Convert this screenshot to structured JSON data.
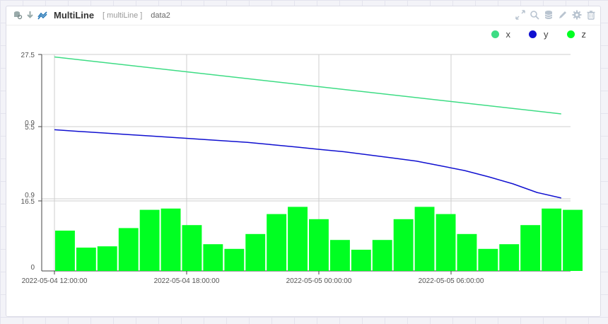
{
  "header": {
    "title": "MultiLine",
    "subtitle": "[ multiLine ]",
    "dataset": "data2",
    "left_icons": [
      "search-db-icon",
      "download-icon",
      "multiline-chart-icon"
    ],
    "right_icons": [
      "expand-icon",
      "search-icon",
      "database-icon",
      "edit-icon",
      "settings-icon",
      "delete-icon"
    ]
  },
  "colors": {
    "x": "#3ddc84",
    "y": "#1010d0",
    "z": "#00ff22",
    "grid": "#cfcfcf"
  },
  "chart_data": {
    "type": "line",
    "legend_position": "top-right",
    "grid": true,
    "time_ticks": [
      "2022-05-04 12:00:00",
      "2022-05-04 18:00:00",
      "2022-05-05 00:00:00",
      "2022-05-05 06:00:00"
    ],
    "series": [
      {
        "name": "x",
        "kind": "line",
        "axis_ticks": [
          "27.5",
          "0.9"
        ],
        "start": "2022-05-04 12:00:00",
        "end": "2022-05-05 11:00:00",
        "values": [
          26.6,
          5.6
        ]
      },
      {
        "name": "y",
        "kind": "line",
        "axis_ticks": [
          "5.5",
          "0.9"
        ],
        "start": "2022-05-04 12:00:00",
        "end": "2022-05-05 11:00:00",
        "values": [
          5.3,
          5.2,
          5.1,
          5.0,
          4.9,
          4.8,
          4.7,
          4.6,
          4.5,
          4.35,
          4.2,
          4.05,
          3.9,
          3.7,
          3.5,
          3.3,
          3.0,
          2.7,
          2.3,
          1.85,
          1.3,
          0.95
        ]
      },
      {
        "name": "z",
        "kind": "bar",
        "axis_ticks": [
          "16.5",
          "0"
        ],
        "start": "2022-05-04 12:00:00",
        "end": "2022-05-05 12:00:00",
        "values": [
          9.5,
          5.5,
          5.8,
          10.1,
          14.4,
          14.7,
          10.8,
          6.3,
          5.2,
          8.7,
          13.4,
          15.1,
          12.2,
          7.3,
          5.0,
          7.3,
          12.2,
          15.1,
          13.4,
          8.7,
          5.2,
          6.3,
          10.8,
          14.7,
          14.4
        ]
      }
    ]
  }
}
